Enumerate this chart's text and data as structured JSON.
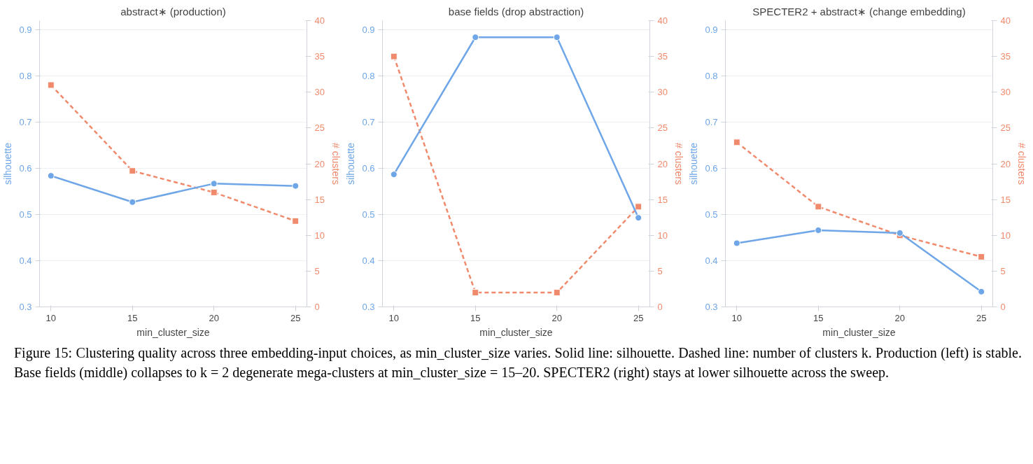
{
  "chart_data": [
    {
      "type": "line",
      "title": "abstract∗ (production)",
      "xlabel": "min_cluster_size",
      "ylabel": "silhouette",
      "y2label": "# clusters",
      "x": [
        10,
        15,
        20,
        25
      ],
      "xlim": [
        9.3,
        25.7
      ],
      "xticks": [
        10,
        15,
        20,
        25
      ],
      "ylim": [
        0.3,
        0.92
      ],
      "yticks": [
        0.3,
        0.4,
        0.5,
        0.6,
        0.7,
        0.8,
        0.9
      ],
      "y2lim": [
        0,
        40
      ],
      "y2ticks": [
        0,
        5,
        10,
        15,
        20,
        25,
        30,
        35,
        40
      ],
      "grid": "y",
      "series": [
        {
          "color": "#6ea6e8",
          "values": [
            0.584,
            0.527,
            0.567,
            0.562
          ],
          "marker": "circle",
          "line_style": "solid"
        },
        {
          "color": "#f08a6c",
          "values": [
            31,
            19,
            16,
            12
          ],
          "axis": "y2",
          "marker": "square",
          "line_style": "dashed"
        }
      ],
      "annotations": [
        "Figure 15: Clustering quality across three embedding-input choices, as min_cluster_size varies. Solid line: silhouette. Dashed line: number of clusters k. Production (left) is stable. Base fields (middle) collapses to k = 2 degenerate mega-clusters at min_cluster_size = 15–20. SPECTER2 (right) stays at lower silhouette across the sweep."
      ]
    },
    {
      "type": "line",
      "title": "base fields (drop abstraction)",
      "xlabel": "min_cluster_size",
      "ylabel": "silhouette",
      "y2label": "# clusters",
      "x": [
        10,
        15,
        20,
        25
      ],
      "xlim": [
        9.3,
        25.7
      ],
      "xticks": [
        10,
        15,
        20,
        25
      ],
      "ylim": [
        0.3,
        0.92
      ],
      "yticks": [
        0.3,
        0.4,
        0.5,
        0.6,
        0.7,
        0.8,
        0.9
      ],
      "y2lim": [
        0,
        40
      ],
      "y2ticks": [
        0,
        5,
        10,
        15,
        20,
        25,
        30,
        35,
        40
      ],
      "grid": "y",
      "series": [
        {
          "color": "#6ea6e8",
          "values": [
            0.587,
            0.884,
            0.884,
            0.493
          ],
          "marker": "circle",
          "line_style": "solid"
        },
        {
          "color": "#f08a6c",
          "values": [
            35,
            2,
            2,
            14
          ],
          "axis": "y2",
          "marker": "square",
          "line_style": "dashed"
        }
      ]
    },
    {
      "type": "line",
      "title": "SPECTER2 + abstract∗ (change embedding)",
      "xlabel": "min_cluster_size",
      "ylabel": "silhouette",
      "y2label": "# clusters",
      "x": [
        10,
        15,
        20,
        25
      ],
      "xlim": [
        9.3,
        25.7
      ],
      "xticks": [
        10,
        15,
        20,
        25
      ],
      "ylim": [
        0.3,
        0.92
      ],
      "yticks": [
        0.3,
        0.4,
        0.5,
        0.6,
        0.7,
        0.8,
        0.9
      ],
      "y2lim": [
        0,
        40
      ],
      "y2ticks": [
        0,
        5,
        10,
        15,
        20,
        25,
        30,
        35,
        40
      ],
      "grid": "y",
      "series": [
        {
          "color": "#6ea6e8",
          "values": [
            0.438,
            0.466,
            0.46,
            0.333
          ],
          "marker": "circle",
          "line_style": "solid"
        },
        {
          "color": "#f08a6c",
          "values": [
            23,
            14,
            10,
            7
          ],
          "axis": "y2",
          "marker": "square",
          "line_style": "dashed"
        }
      ]
    }
  ]
}
